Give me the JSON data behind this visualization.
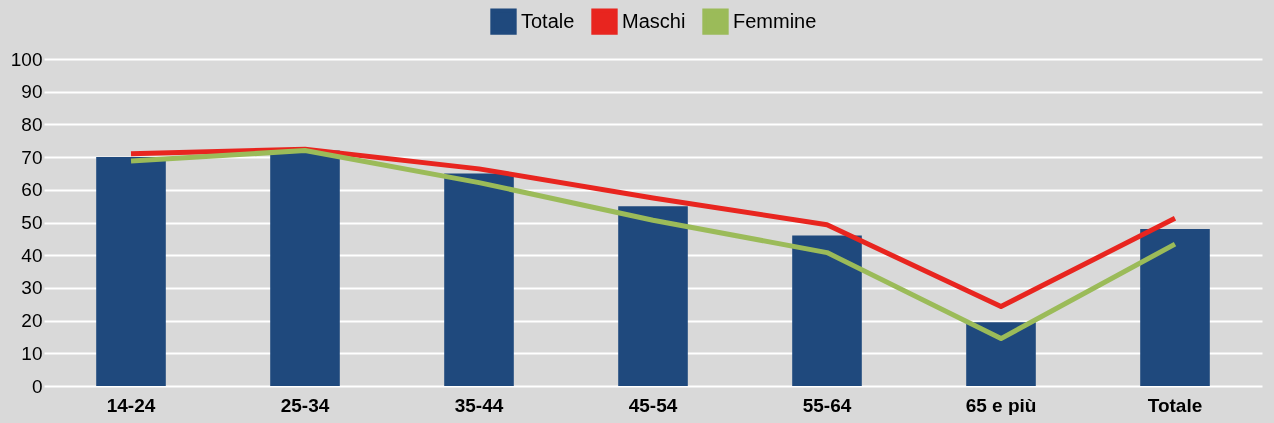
{
  "chart_data": {
    "type": "bar",
    "categories": [
      "14-24",
      "25-34",
      "35-44",
      "45-54",
      "55-64",
      "65 e più",
      "Totale"
    ],
    "series": [
      {
        "name": "Totale",
        "color": "#1f497d",
        "values": [
          70,
          72,
          65,
          55,
          46,
          19.5,
          48
        ]
      },
      {
        "name": "Maschi",
        "type": "line",
        "color": "#e8251f",
        "values": [
          71,
          72.4,
          66.4,
          57.5,
          49.3,
          24.3,
          51.3
        ]
      },
      {
        "name": "Femmine",
        "type": "line",
        "color": "#9bbb59",
        "values": [
          68.8,
          72,
          62.2,
          50.7,
          40.8,
          14.5,
          43.4
        ]
      }
    ],
    "ylim": [
      0,
      100
    ],
    "yticks": [
      0,
      10,
      20,
      30,
      40,
      50,
      60,
      70,
      80,
      90,
      100
    ],
    "grid": "y",
    "legend": "top",
    "marker": "none",
    "line_style": "solid"
  }
}
